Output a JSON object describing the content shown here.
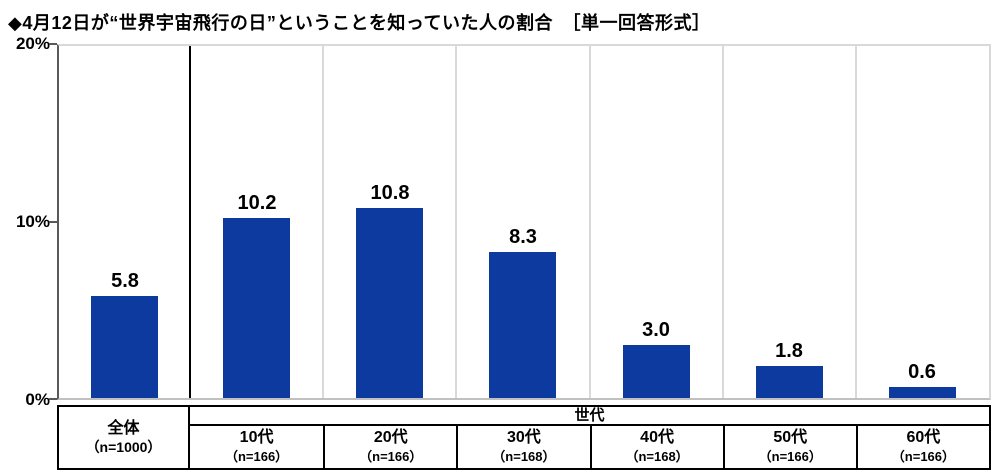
{
  "chart_data": {
    "type": "bar",
    "title": "◆4月12日が“世界宇宙飛行の日”ということを知っていた人の割合　［単一回答形式］",
    "question_format": "単一回答形式",
    "categories": [
      "全体",
      "10代",
      "20代",
      "30代",
      "40代",
      "50代",
      "60代"
    ],
    "n_labels": [
      "（n=1000）",
      "（n=166）",
      "（n=166）",
      "（n=168）",
      "（n=168）",
      "（n=166）",
      "（n=166）"
    ],
    "values": [
      5.8,
      10.2,
      10.8,
      8.3,
      3.0,
      1.8,
      0.6
    ],
    "labels": [
      "5.8",
      "10.2",
      "10.8",
      "8.3",
      "3.0",
      "1.8",
      "0.6"
    ],
    "unit": "%",
    "ylim": [
      0,
      20
    ],
    "yticks": [
      "20%",
      "10%",
      "0%"
    ],
    "group_header": "世代",
    "grid": "none",
    "legend": "none",
    "colors": {
      "bar": "#0d3a9e",
      "axis": "#595959",
      "plot_border": "#d9d9d9",
      "separator": "#000000",
      "text": "#000000"
    }
  }
}
